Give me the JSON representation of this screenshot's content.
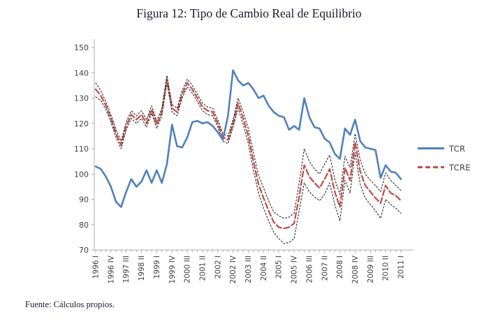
{
  "title": "Figura 12: Tipo de Cambio Real de Equilibrio",
  "source_note": "Fuente: Cálculos propios.",
  "legend": {
    "items": [
      {
        "label": "TCR",
        "color": "#4F81BD",
        "style": "solid"
      },
      {
        "label": "TCRE",
        "color": "#C0504D",
        "style": "dashed"
      }
    ]
  },
  "colors": {
    "tcr": "#4F81BD",
    "tcre": "#C0504D",
    "band": "#2b2b2b",
    "axis": "#ADADAD",
    "tick_label": "#404040",
    "text": "#1a1a2e"
  },
  "chart_data": {
    "type": "line",
    "title": "Figura 12: Tipo de Cambio Real de Equilibrio",
    "xlabel": "",
    "ylabel": "",
    "ylim": [
      70,
      150
    ],
    "y_ticks": [
      70,
      80,
      90,
      100,
      110,
      120,
      130,
      140,
      150
    ],
    "grid": false,
    "legend_position": "right",
    "x_label_every": 3,
    "x": [
      "1996 I",
      "1996 II",
      "1996 III",
      "1996 IV",
      "1997 I",
      "1997 II",
      "1997 III",
      "1997 IV",
      "1998 I",
      "1998 II",
      "1998 III",
      "1998 IV",
      "1999 I",
      "1999 II",
      "1999 III",
      "1999 IV",
      "2000 I",
      "2000 II",
      "2000 III",
      "2000 IV",
      "2001 I",
      "2001 II",
      "2001 III",
      "2001 IV",
      "2002 I",
      "2002 II",
      "2002 III",
      "2002 IV",
      "2003 I",
      "2003 II",
      "2003 III",
      "2003 IV",
      "2004 I",
      "2004 II",
      "2004 III",
      "2004 IV",
      "2005 I",
      "2005 II",
      "2005 III",
      "2005 IV",
      "2006 I",
      "2006 II",
      "2006 III",
      "2006 IV",
      "2007 I",
      "2007 II",
      "2007 III",
      "2007 IV",
      "2008 I",
      "2008 II",
      "2008 III",
      "2008 IV",
      "2009 I",
      "2009 II",
      "2009 III",
      "2009 IV",
      "2010 I",
      "2010 II",
      "2010 III",
      "2010 IV",
      "2011 I"
    ],
    "series": [
      {
        "name": "TCR",
        "style": "solid",
        "color": "#4F81BD",
        "width": 2.6,
        "values": [
          103,
          102,
          99,
          95,
          89,
          87,
          93,
          98,
          95,
          97,
          101.5,
          96.5,
          101.5,
          96.5,
          104,
          119.5,
          111,
          110.5,
          114.5,
          120.5,
          121,
          120,
          120.5,
          119,
          116.5,
          113.5,
          123,
          141,
          137,
          135,
          136,
          133.5,
          130,
          131,
          127,
          124.5,
          123,
          122.5,
          117.5,
          119,
          117.5,
          130,
          122.5,
          118.5,
          118,
          114,
          112.5,
          108,
          106,
          118,
          115.5,
          121.5,
          113,
          110.5,
          110,
          109.5,
          98.5,
          103.5,
          101,
          100.5,
          98
        ]
      },
      {
        "name": "TCRE",
        "style": "dashed",
        "color": "#C0504D",
        "width": 2.3,
        "values": [
          133.5,
          131,
          127,
          122,
          116,
          111.5,
          119,
          123.5,
          121.5,
          123.5,
          120,
          125.5,
          119.5,
          124.5,
          137.5,
          126,
          124.5,
          131.5,
          136,
          133.5,
          130,
          126.5,
          125,
          124.5,
          120,
          114.5,
          113.5,
          120,
          128,
          122,
          115,
          105,
          96,
          90.5,
          85.5,
          81,
          79,
          78.5,
          79,
          80.5,
          91,
          103.5,
          99,
          96.5,
          94.5,
          98,
          102,
          93,
          87,
          102.5,
          97.5,
          112.5,
          101,
          95.5,
          93,
          90.5,
          88.5,
          95.5,
          92.5,
          91.5,
          89.5
        ]
      },
      {
        "name": "TCRE banda superior",
        "style": "dotted",
        "color": "#2b2b2b",
        "width": 1.1,
        "values": [
          136,
          133,
          128.5,
          123.5,
          117.5,
          113,
          120.5,
          125,
          123,
          125,
          121.5,
          127,
          121,
          126,
          139,
          127.5,
          126,
          133,
          137.5,
          135,
          131.5,
          128,
          126.5,
          126,
          121.5,
          116,
          115,
          121.5,
          130,
          124.5,
          118,
          108.5,
          99.5,
          94.5,
          89.5,
          85,
          83.5,
          82.5,
          83,
          84.5,
          96.5,
          110,
          105,
          102,
          100,
          104,
          107.5,
          98,
          92,
          107,
          102.5,
          116,
          105.5,
          100,
          97.5,
          95.5,
          93,
          100.5,
          97.5,
          95.5,
          93.5
        ]
      },
      {
        "name": "TCRE banda inferior",
        "style": "dotted",
        "color": "#2b2b2b",
        "width": 1.1,
        "values": [
          130.5,
          129,
          125.5,
          120.5,
          114.5,
          110,
          117.5,
          122,
          120,
          122,
          118.5,
          124,
          118,
          123,
          136,
          124.5,
          123,
          130,
          134.5,
          132,
          128.5,
          125,
          123.5,
          123,
          118.5,
          113,
          112,
          118.5,
          126,
          119.5,
          112,
          101.5,
          92.5,
          86.5,
          81.5,
          77,
          74.5,
          72.5,
          73,
          74.5,
          85.5,
          96.5,
          93,
          91,
          89.5,
          92,
          96.5,
          88,
          81.5,
          97.5,
          92.5,
          108.5,
          96,
          90.5,
          88,
          85.5,
          82.5,
          90,
          88,
          86.5,
          84.5
        ]
      }
    ]
  }
}
